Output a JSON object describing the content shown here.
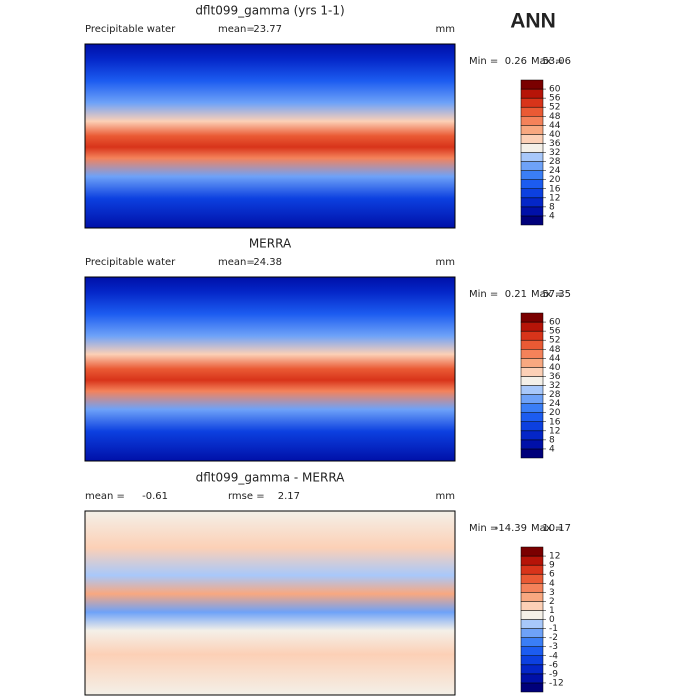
{
  "season": "ANN",
  "panels": [
    {
      "title": "dflt099_gamma (yrs 1-1)",
      "left_label": "Precipitable water",
      "stats": [
        {
          "label": "mean=",
          "value": 23.77
        }
      ],
      "units": "mm",
      "min_label": "Min =",
      "min": 0.26,
      "max_label": "Max =",
      "max": 53.06,
      "colorbar": {
        "ticks": [
          4,
          8,
          12,
          16,
          20,
          24,
          28,
          32,
          36,
          40,
          44,
          48,
          52,
          56,
          60
        ],
        "colors": [
          "#00007a",
          "#0010a8",
          "#0426c8",
          "#0c40e0",
          "#1c5cf0",
          "#3a7ef6",
          "#6ea2f8",
          "#a8c8fa",
          "#f4f0e8",
          "#fcd0b6",
          "#f8a880",
          "#f4825a",
          "#ea5a34",
          "#d8341a",
          "#b61408",
          "#7a0000"
        ]
      }
    },
    {
      "title": "MERRA",
      "left_label": "Precipitable water",
      "stats": [
        {
          "label": "mean=",
          "value": 24.38
        }
      ],
      "units": "mm",
      "min_label": "Min =",
      "min": 0.21,
      "max_label": "Max =",
      "max": 57.35,
      "colorbar": {
        "ticks": [
          4,
          8,
          12,
          16,
          20,
          24,
          28,
          32,
          36,
          40,
          44,
          48,
          52,
          56,
          60
        ],
        "colors": [
          "#00007a",
          "#0010a8",
          "#0426c8",
          "#0c40e0",
          "#1c5cf0",
          "#3a7ef6",
          "#6ea2f8",
          "#a8c8fa",
          "#f4f0e8",
          "#fcd0b6",
          "#f8a880",
          "#f4825a",
          "#ea5a34",
          "#d8341a",
          "#b61408",
          "#7a0000"
        ]
      }
    },
    {
      "title": "dflt099_gamma - MERRA",
      "stats": [
        {
          "label": "mean =",
          "value": -0.61
        },
        {
          "label": "rmse =",
          "value": 2.17
        }
      ],
      "units": "mm",
      "min_label": "Min =",
      "min": -14.39,
      "max_label": "Max =",
      "max": 10.17,
      "colorbar": {
        "ticks": [
          -12,
          -9,
          -6,
          -4,
          -3,
          -2,
          -1,
          0,
          1,
          2,
          3,
          4,
          6,
          9,
          12
        ],
        "colors": [
          "#00007a",
          "#0010a8",
          "#0426c8",
          "#0c40e0",
          "#1c5cf0",
          "#3a7ef6",
          "#6ea2f8",
          "#a8c8fa",
          "#f4f0e8",
          "#fcd0b6",
          "#f8a880",
          "#f4825a",
          "#ea5a34",
          "#d8341a",
          "#b61408",
          "#7a0000"
        ]
      }
    }
  ]
}
